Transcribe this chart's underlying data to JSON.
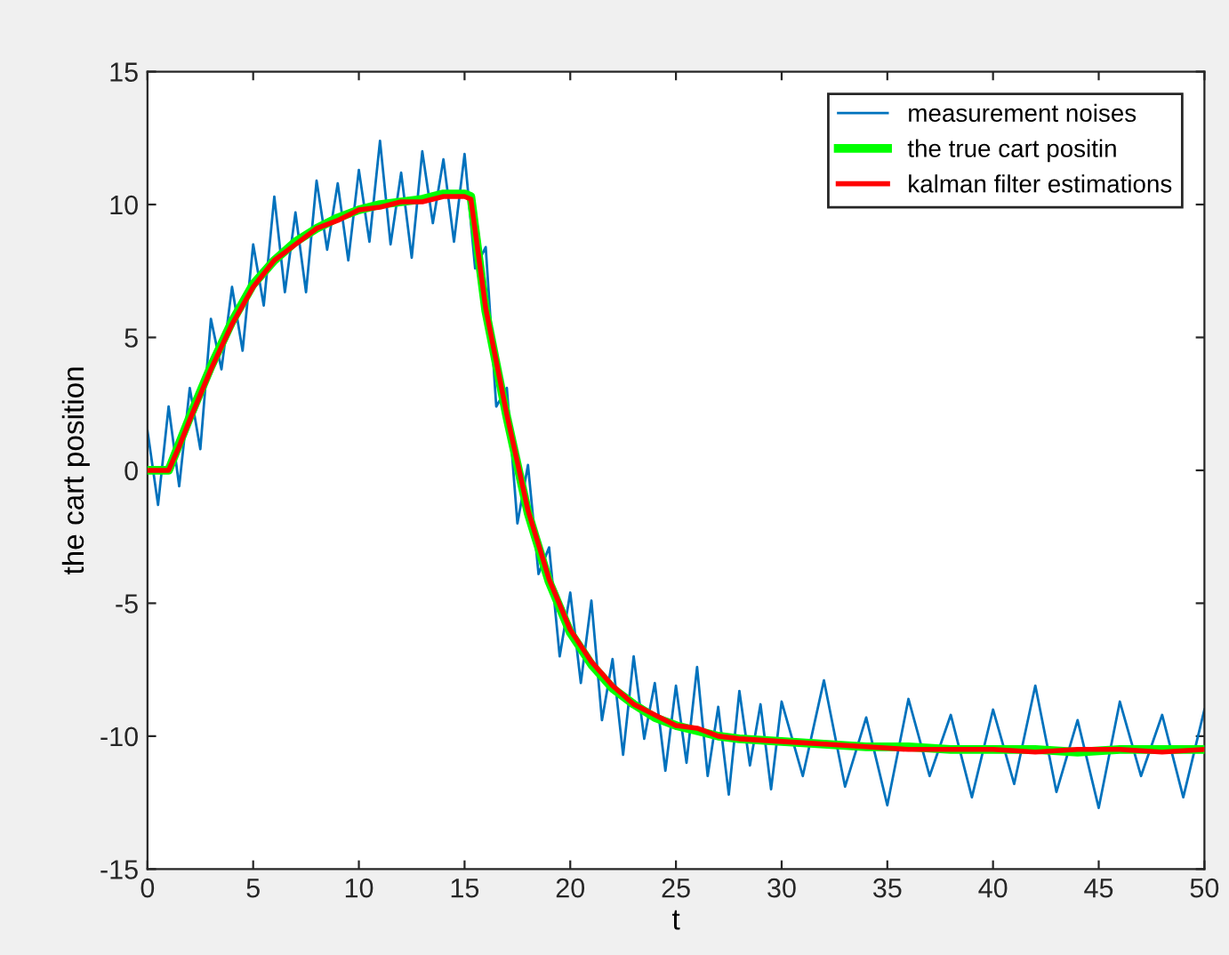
{
  "chart_data": {
    "type": "line",
    "xlabel": "t",
    "ylabel": "the cart position",
    "xlim": [
      0,
      50
    ],
    "ylim": [
      -15,
      15
    ],
    "xticks": [
      0,
      5,
      10,
      15,
      20,
      25,
      30,
      35,
      40,
      45,
      50
    ],
    "yticks": [
      -15,
      -10,
      -5,
      0,
      5,
      10,
      15
    ],
    "grid": false,
    "legend": "top right",
    "line_style": "solid",
    "marker": "none",
    "series": [
      {
        "name": "measurement noises",
        "color": "#0072bd",
        "x": [
          0,
          0.5,
          1,
          1.5,
          2,
          2.5,
          3,
          3.5,
          4,
          4.5,
          5,
          5.5,
          6,
          6.5,
          7,
          7.5,
          8,
          8.5,
          9,
          9.5,
          10,
          10.5,
          11,
          11.5,
          12,
          12.5,
          13,
          13.5,
          14,
          14.5,
          15,
          15.5,
          16,
          16.5,
          17,
          17.5,
          18,
          18.5,
          19,
          19.5,
          20,
          20.5,
          21,
          21.5,
          22,
          22.5,
          23,
          23.5,
          24,
          24.5,
          25,
          25.5,
          26,
          26.5,
          27,
          27.5,
          28,
          28.5,
          29,
          29.5,
          30,
          31,
          32,
          33,
          34,
          35,
          36,
          37,
          38,
          39,
          40,
          41,
          42,
          43,
          44,
          45,
          46,
          47,
          48,
          49,
          50
        ],
        "values": [
          1.5,
          -1.3,
          2.4,
          -0.6,
          3.1,
          0.8,
          5.7,
          3.8,
          6.9,
          4.5,
          8.5,
          6.2,
          10.3,
          6.7,
          9.7,
          6.7,
          10.9,
          8.3,
          10.8,
          7.9,
          11.3,
          8.6,
          12.4,
          8.5,
          11.2,
          8.0,
          12.0,
          9.3,
          11.7,
          8.6,
          11.9,
          7.6,
          8.4,
          2.4,
          3.1,
          -2.0,
          0.2,
          -3.9,
          -2.9,
          -7.0,
          -4.6,
          -8.0,
          -4.9,
          -9.4,
          -7.1,
          -10.7,
          -7.0,
          -10.1,
          -8.0,
          -11.3,
          -8.1,
          -11.0,
          -7.4,
          -11.5,
          -8.9,
          -12.2,
          -8.3,
          -11.1,
          -8.8,
          -12.0,
          -8.7,
          -11.5,
          -7.9,
          -11.9,
          -9.3,
          -12.6,
          -8.6,
          -11.5,
          -9.2,
          -12.3,
          -9.0,
          -11.8,
          -8.1,
          -12.1,
          -9.4,
          -12.7,
          -8.7,
          -11.5,
          -9.2,
          -12.3,
          -9.0
        ]
      },
      {
        "name": "the true cart positin",
        "color": "#00ff00",
        "x": [
          0,
          1,
          1.5,
          2,
          3,
          4,
          5,
          6,
          7,
          8,
          9,
          10,
          11,
          12,
          13,
          14,
          15,
          15.3,
          16,
          17,
          18,
          19,
          20,
          21,
          22,
          23,
          24,
          25,
          26,
          27,
          28,
          30,
          32,
          34,
          36,
          38,
          40,
          42,
          44,
          46,
          48,
          50
        ],
        "values": [
          0,
          0,
          1.0,
          2.0,
          3.9,
          5.6,
          7.0,
          7.9,
          8.6,
          9.1,
          9.5,
          9.8,
          10.0,
          10.1,
          10.2,
          10.4,
          10.4,
          10.3,
          6.0,
          2.0,
          -1.6,
          -4.2,
          -6.1,
          -7.3,
          -8.2,
          -8.8,
          -9.3,
          -9.6,
          -9.8,
          -10.0,
          -10.1,
          -10.2,
          -10.3,
          -10.4,
          -10.4,
          -10.5,
          -10.5,
          -10.5,
          -10.6,
          -10.5,
          -10.5,
          -10.5
        ]
      },
      {
        "name": "kalman filter estimations",
        "color": "#ff0000",
        "x": [
          0,
          1,
          1.5,
          2,
          3,
          4,
          5,
          6,
          7,
          8,
          9,
          10,
          11,
          12,
          13,
          14,
          15,
          15.3,
          16,
          17,
          18,
          19,
          20,
          21,
          22,
          23,
          24,
          25,
          26,
          27,
          28,
          30,
          32,
          34,
          36,
          38,
          40,
          42,
          44,
          46,
          48,
          50
        ],
        "values": [
          0,
          0,
          0.9,
          1.9,
          3.8,
          5.5,
          6.9,
          7.9,
          8.5,
          9.1,
          9.4,
          9.8,
          9.9,
          10.1,
          10.1,
          10.3,
          10.3,
          10.2,
          6.1,
          2.1,
          -1.5,
          -4.1,
          -6.0,
          -7.2,
          -8.1,
          -8.8,
          -9.2,
          -9.6,
          -9.7,
          -10.0,
          -10.1,
          -10.2,
          -10.3,
          -10.4,
          -10.5,
          -10.5,
          -10.5,
          -10.6,
          -10.5,
          -10.5,
          -10.6,
          -10.5
        ]
      }
    ]
  }
}
